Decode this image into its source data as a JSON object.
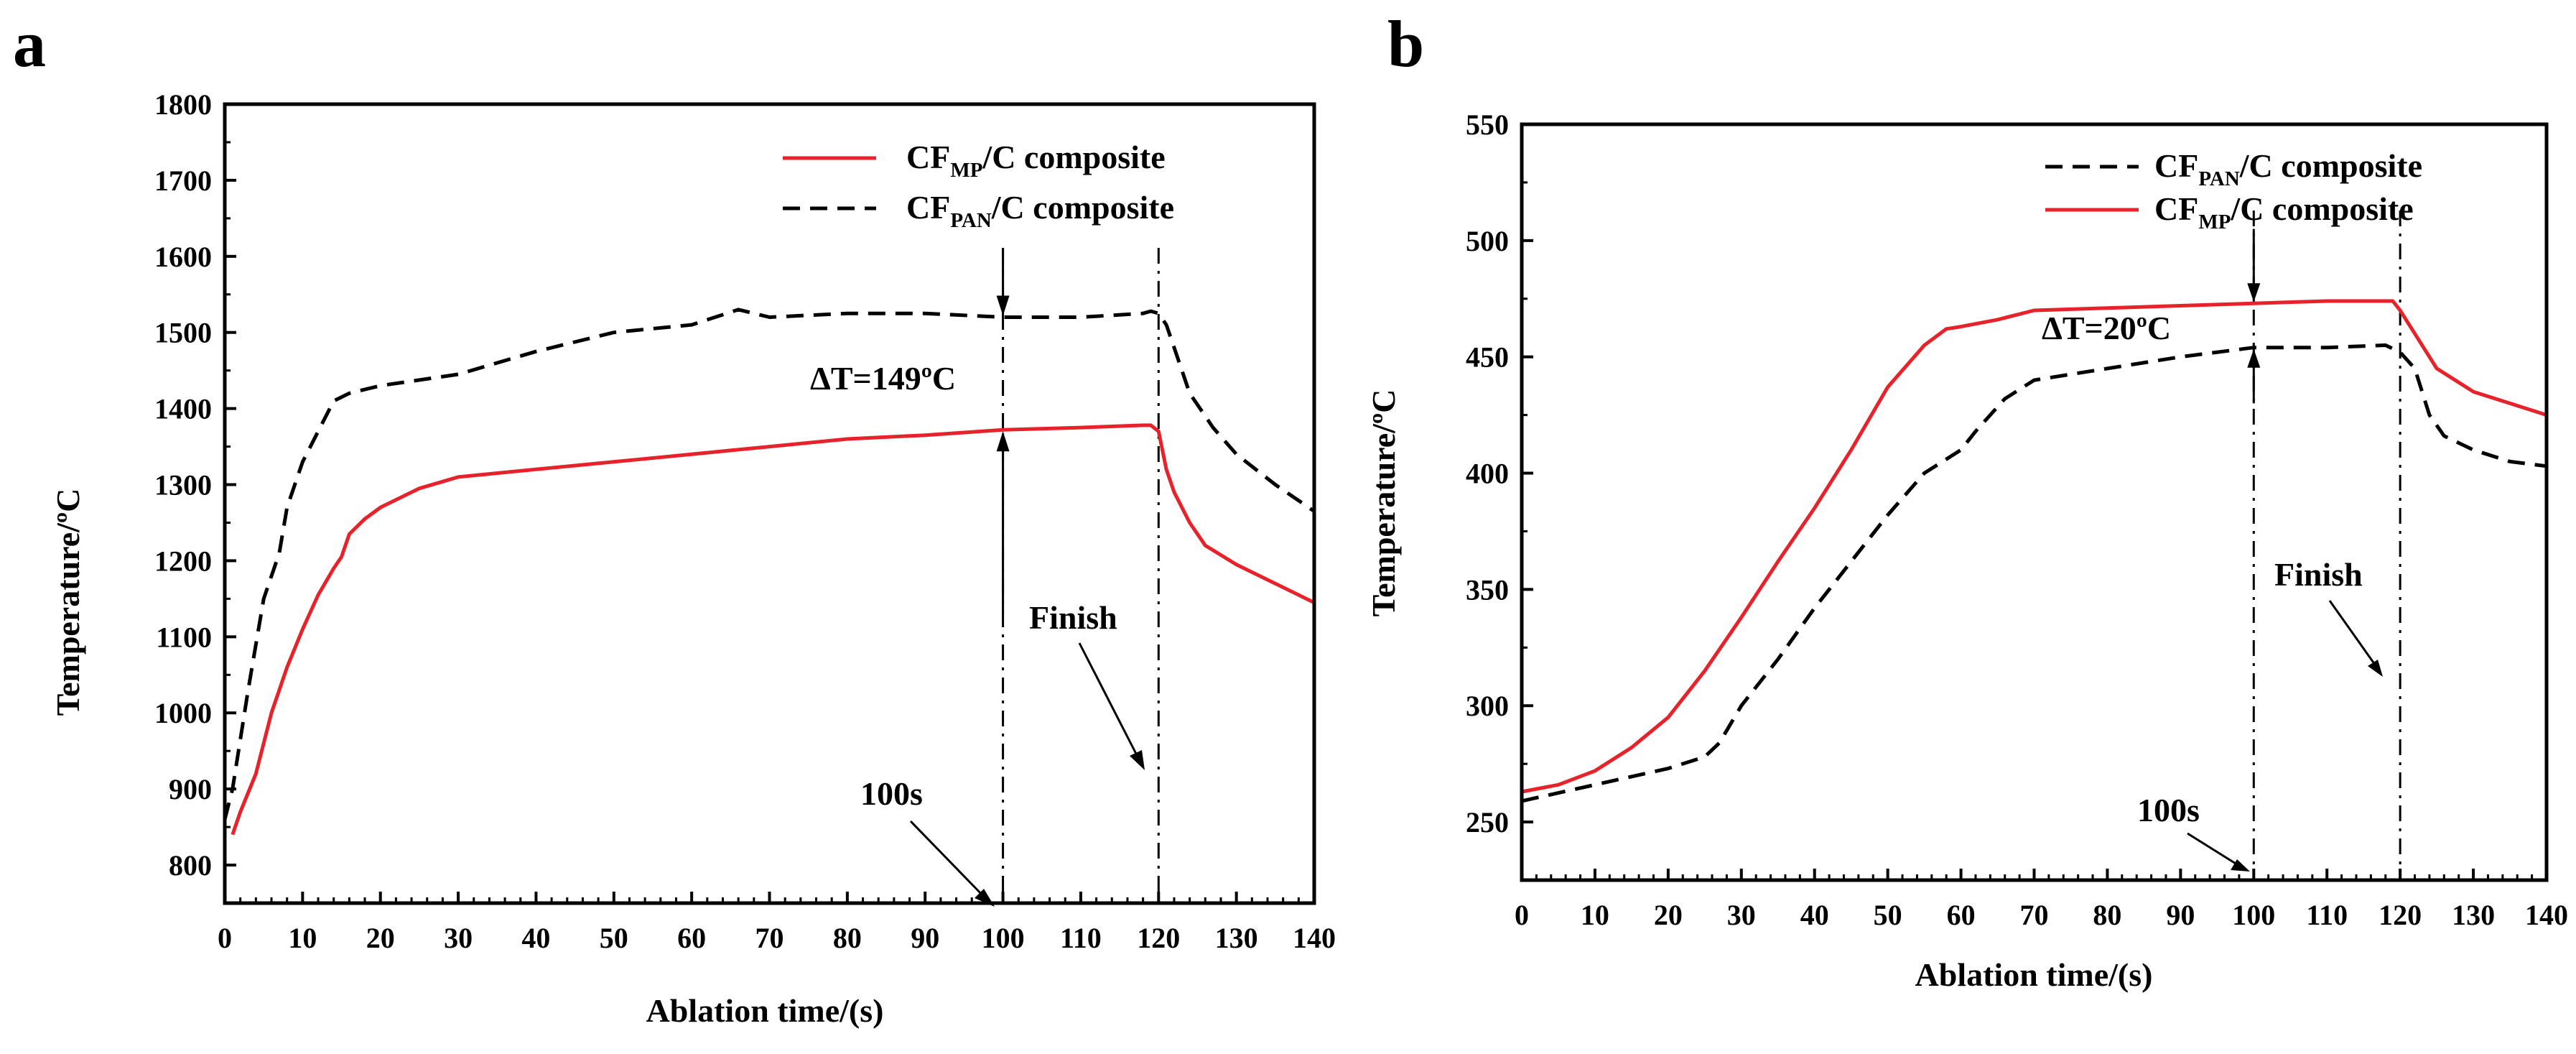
{
  "figure": {
    "colors": {
      "mp": "#e8222a",
      "pan": "#000000"
    },
    "panels": {
      "a": {
        "label": "a",
        "legend": [
          {
            "series": "mp",
            "prefix": "CF",
            "sub": "MP",
            "suffix": "/C composite"
          },
          {
            "series": "pan",
            "prefix": "CF",
            "sub": "PAN",
            "suffix": "/C composite"
          }
        ],
        "annotations": {
          "delta": "ΔT=149ºC",
          "time_mark": "100s",
          "finish": "Finish"
        }
      },
      "b": {
        "label": "b",
        "legend": [
          {
            "series": "pan",
            "prefix": "CF",
            "sub": "PAN",
            "suffix": "/C composite"
          },
          {
            "series": "mp",
            "prefix": "CF",
            "sub": "MP",
            "suffix": "/C composite"
          }
        ],
        "annotations": {
          "delta": "ΔT=20ºC",
          "time_mark": "100s",
          "finish": "Finish"
        }
      }
    }
  },
  "chart_data": [
    {
      "panel": "a",
      "type": "line",
      "title": "",
      "xlabel": "Ablation time/(s)",
      "ylabel": "Temperature/ºC",
      "xlim": [
        0,
        140
      ],
      "ylim": [
        750,
        1800
      ],
      "xticks": [
        0,
        10,
        20,
        30,
        40,
        50,
        60,
        70,
        80,
        90,
        100,
        110,
        120,
        130,
        140
      ],
      "yticks": [
        800,
        900,
        1000,
        1100,
        1200,
        1300,
        1400,
        1500,
        1600,
        1700,
        1800
      ],
      "vlines": [
        100,
        120
      ],
      "delta_t": 149,
      "series": [
        {
          "name": "CF_MP/C composite",
          "key": "mp",
          "x": [
            1,
            2,
            4,
            6,
            8,
            10,
            12,
            14,
            15,
            16,
            18,
            20,
            25,
            30,
            40,
            50,
            60,
            70,
            80,
            90,
            100,
            110,
            118,
            119,
            120,
            121,
            122,
            124,
            126,
            130,
            135,
            140
          ],
          "y": [
            840,
            870,
            920,
            1000,
            1060,
            1110,
            1155,
            1190,
            1205,
            1235,
            1255,
            1270,
            1295,
            1310,
            1320,
            1330,
            1340,
            1350,
            1360,
            1365,
            1372,
            1375,
            1378,
            1378,
            1370,
            1320,
            1290,
            1250,
            1220,
            1195,
            1170,
            1145
          ]
        },
        {
          "name": "CF_PAN/C composite",
          "key": "pan",
          "x": [
            0,
            1,
            3,
            5,
            7,
            8,
            10,
            12,
            14,
            16,
            20,
            30,
            40,
            50,
            60,
            66,
            70,
            80,
            90,
            100,
            110,
            118,
            119,
            120,
            121,
            122,
            124,
            127,
            130,
            135,
            140
          ],
          "y": [
            860,
            900,
            1030,
            1150,
            1210,
            1270,
            1330,
            1370,
            1410,
            1420,
            1430,
            1445,
            1475,
            1500,
            1510,
            1530,
            1520,
            1525,
            1525,
            1520,
            1520,
            1525,
            1528,
            1525,
            1510,
            1480,
            1420,
            1375,
            1340,
            1300,
            1265
          ]
        }
      ]
    },
    {
      "panel": "b",
      "type": "line",
      "title": "",
      "xlabel": "Ablation time/(s)",
      "ylabel": "Temperature/ºC",
      "xlim": [
        0,
        140
      ],
      "ylim": [
        225,
        550
      ],
      "xticks": [
        0,
        10,
        20,
        30,
        40,
        50,
        60,
        70,
        80,
        90,
        100,
        110,
        120,
        130,
        140
      ],
      "yticks": [
        250,
        300,
        350,
        400,
        450,
        500,
        550
      ],
      "vlines": [
        100,
        120
      ],
      "delta_t": 20,
      "series": [
        {
          "name": "CF_PAN/C composite",
          "key": "pan",
          "x": [
            0,
            10,
            20,
            25,
            27,
            30,
            35,
            40,
            45,
            50,
            55,
            60,
            62,
            66,
            70,
            80,
            90,
            100,
            110,
            118,
            120,
            122,
            124,
            126,
            130,
            135,
            140
          ],
          "y": [
            259,
            266,
            273,
            278,
            284,
            300,
            320,
            342,
            362,
            382,
            400,
            410,
            418,
            432,
            440,
            445,
            450,
            454,
            454,
            455,
            452,
            445,
            425,
            416,
            410,
            405,
            403
          ]
        },
        {
          "name": "CF_MP/C composite",
          "key": "mp",
          "x": [
            0,
            5,
            10,
            15,
            20,
            25,
            30,
            35,
            40,
            45,
            50,
            55,
            58,
            60,
            65,
            70,
            80,
            90,
            100,
            110,
            118,
            119,
            120,
            122,
            125,
            130,
            135,
            140
          ],
          "y": [
            263,
            266,
            272,
            282,
            295,
            315,
            338,
            362,
            385,
            410,
            437,
            455,
            462,
            463,
            466,
            470,
            471,
            472,
            473,
            474,
            474,
            474,
            470,
            460,
            445,
            435,
            430,
            425
          ]
        }
      ]
    }
  ]
}
